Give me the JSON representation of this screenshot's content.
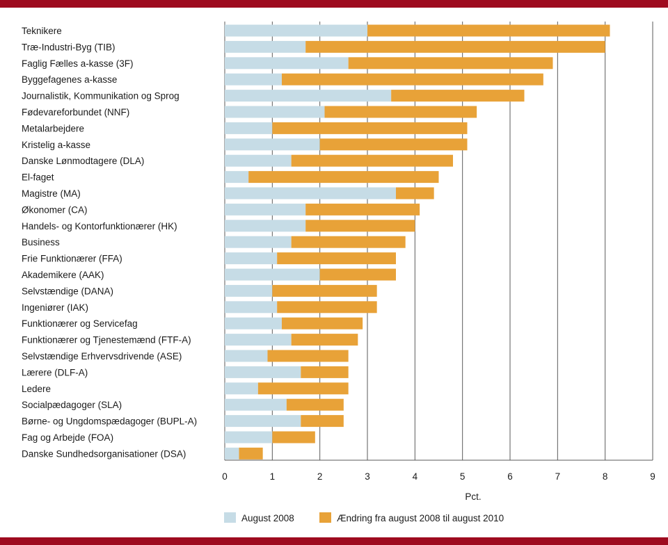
{
  "chart_data": {
    "type": "bar",
    "orientation": "horizontal",
    "stacked": true,
    "categories": [
      "Teknikere",
      "Træ-Industri-Byg (TIB)",
      "Faglig Fælles a-kasse (3F)",
      "Byggefagenes a-kasse",
      "Journalistik, Kommunikation og Sprog",
      "Fødevareforbundet (NNF)",
      "Metalarbejdere",
      "Kristelig a-kasse",
      "Danske Lønmodtagere (DLA)",
      "El-faget",
      "Magistre (MA)",
      "Økonomer (CA)",
      "Handels- og Kontorfunktionærer (HK)",
      "Business",
      "Frie Funktionærer (FFA)",
      "Akademikere (AAK)",
      "Selvstændige (DANA)",
      "Ingeniører (IAK)",
      "Funktionærer og Servicefag",
      "Funktionærer og Tjenestemænd (FTF-A)",
      "Selvstændige Erhvervsdrivende (ASE)",
      "Lærere (DLF-A)",
      "Ledere",
      "Socialpædagoger (SLA)",
      "Børne- og Ungdomspædagoger (BUPL-A)",
      "Fag og Arbejde (FOA)",
      "Danske Sundhedsorganisationer (DSA)"
    ],
    "series": [
      {
        "name": "August 2008",
        "color": "#c6dce6",
        "values": [
          3.0,
          1.7,
          2.6,
          1.2,
          3.5,
          2.1,
          1.0,
          2.0,
          1.4,
          0.5,
          3.6,
          1.7,
          1.7,
          1.4,
          1.1,
          2.0,
          1.0,
          1.1,
          1.2,
          1.4,
          0.9,
          1.6,
          0.7,
          1.3,
          1.6,
          1.0,
          0.3
        ]
      },
      {
        "name": "Ændring fra august 2008 til august 2010",
        "color": "#e8a238",
        "values": [
          5.1,
          6.3,
          4.3,
          5.5,
          2.8,
          3.2,
          4.1,
          3.1,
          3.4,
          4.0,
          0.8,
          2.4,
          2.3,
          2.4,
          2.5,
          1.6,
          2.2,
          2.1,
          1.7,
          1.4,
          1.7,
          1.0,
          1.9,
          1.2,
          0.9,
          0.9,
          0.5
        ]
      }
    ],
    "xlabel": "Pct.",
    "xlim": [
      0,
      9
    ],
    "xticks": [
      "0",
      "1",
      "2",
      "3",
      "4",
      "5",
      "6",
      "7",
      "8",
      "9"
    ],
    "grid": "vertical",
    "legend_position": "bottom"
  }
}
